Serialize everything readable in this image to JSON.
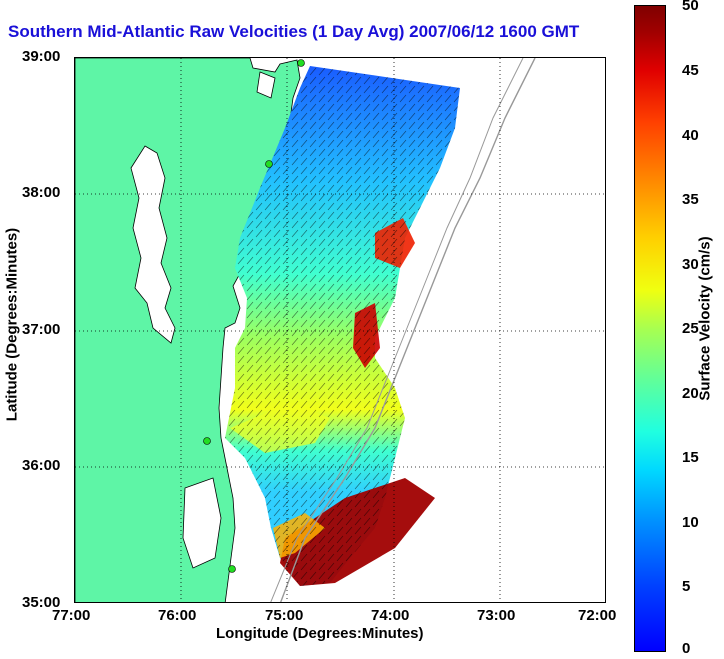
{
  "title": "Southern Mid-Atlantic Raw Velocities (1 Day Avg) 2007/06/12 1600 GMT",
  "x_axis": {
    "label": "Longitude (Degrees:Minutes)",
    "ticks": [
      "77:00",
      "76:00",
      "75:00",
      "74:00",
      "73:00",
      "72:00"
    ]
  },
  "y_axis": {
    "label": "Latitude (Degrees:Minutes)",
    "ticks": [
      "39:00",
      "38:00",
      "37:00",
      "36:00",
      "35:00"
    ]
  },
  "colorbar": {
    "label": "Surface Velocity (cm/s)",
    "ticks": [
      "0",
      "5",
      "10",
      "15",
      "20",
      "25",
      "30",
      "35",
      "40",
      "45",
      "50"
    ],
    "range": [
      0,
      50
    ]
  },
  "colors": {
    "land": "#5ef5a6",
    "title": "#1a10d8",
    "station": "#22dd22"
  }
}
